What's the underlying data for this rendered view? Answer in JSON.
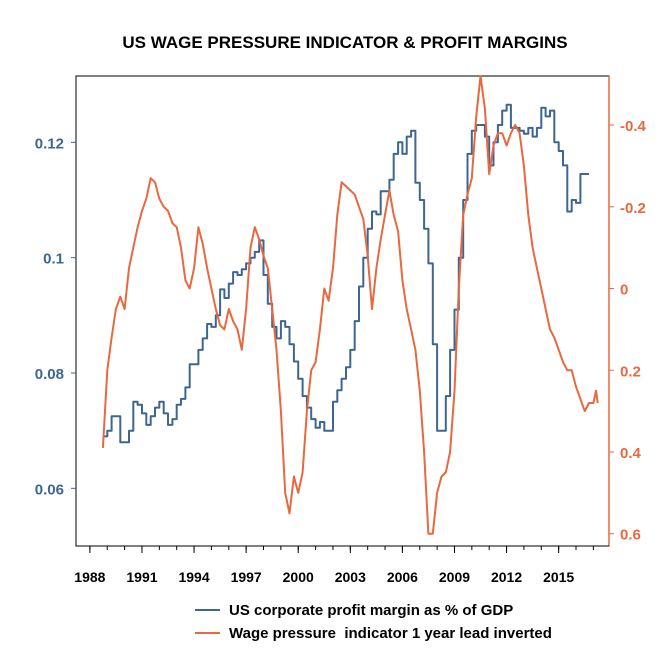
{
  "chart_data": {
    "type": "line",
    "title": "US WAGE PRESSURE INDICATOR & PROFIT MARGINS",
    "x_axis": {
      "range": [
        1987.2,
        2017.9
      ],
      "ticks": [
        1988,
        1991,
        1994,
        1997,
        2000,
        2003,
        2006,
        2009,
        2012,
        2015
      ],
      "tick_labels": [
        "1988",
        "1991",
        "1994",
        "1997",
        "2000",
        "2003",
        "2006",
        "2009",
        "2012",
        "2015"
      ]
    },
    "y_left": {
      "range": [
        0.05,
        0.1315
      ],
      "ticks": [
        0.06,
        0.08,
        0.1,
        0.12
      ],
      "tick_labels": [
        "0.06",
        "0.08",
        "0.1",
        "0.12"
      ],
      "color": "#3d6690"
    },
    "y_right": {
      "range": [
        0.63,
        -0.52
      ],
      "inverted": true,
      "ticks": [
        -0.4,
        -0.2,
        0,
        0.2,
        0.4,
        0.6
      ],
      "tick_labels": [
        "-0.4",
        "-0.2",
        "0",
        "0.2",
        "0.4",
        "0.6"
      ],
      "color": "#e8683f"
    },
    "grid": false,
    "legend_position": "bottom",
    "series": [
      {
        "name": "US corporate profit margin as % of GDP",
        "axis": "left",
        "color": "#3d6690",
        "step": true,
        "points": [
          [
            1988.75,
            0.069
          ],
          [
            1989.0,
            0.07
          ],
          [
            1989.25,
            0.0725
          ],
          [
            1989.75,
            0.068
          ],
          [
            1990.0,
            0.068
          ],
          [
            1990.25,
            0.07
          ],
          [
            1990.5,
            0.075
          ],
          [
            1990.75,
            0.0745
          ],
          [
            1991.0,
            0.073
          ],
          [
            1991.25,
            0.071
          ],
          [
            1991.5,
            0.0725
          ],
          [
            1991.75,
            0.074
          ],
          [
            1992.0,
            0.075
          ],
          [
            1992.25,
            0.073
          ],
          [
            1992.5,
            0.071
          ],
          [
            1992.75,
            0.072
          ],
          [
            1993.0,
            0.0745
          ],
          [
            1993.25,
            0.0755
          ],
          [
            1993.5,
            0.0775
          ],
          [
            1993.75,
            0.0815
          ],
          [
            1994.0,
            0.0815
          ],
          [
            1994.25,
            0.084
          ],
          [
            1994.5,
            0.086
          ],
          [
            1994.75,
            0.0885
          ],
          [
            1995.0,
            0.088
          ],
          [
            1995.25,
            0.09
          ],
          [
            1995.5,
            0.0945
          ],
          [
            1995.75,
            0.093
          ],
          [
            1996.0,
            0.0955
          ],
          [
            1996.25,
            0.0975
          ],
          [
            1996.5,
            0.097
          ],
          [
            1996.75,
            0.098
          ],
          [
            1997.0,
            0.099
          ],
          [
            1997.25,
            0.1
          ],
          [
            1997.5,
            0.101
          ],
          [
            1997.75,
            0.103
          ],
          [
            1998.0,
            0.097
          ],
          [
            1998.25,
            0.092
          ],
          [
            1998.5,
            0.088
          ],
          [
            1998.75,
            0.086
          ],
          [
            1999.0,
            0.089
          ],
          [
            1999.25,
            0.088
          ],
          [
            1999.5,
            0.085
          ],
          [
            1999.75,
            0.082
          ],
          [
            2000.0,
            0.079
          ],
          [
            2000.25,
            0.076
          ],
          [
            2000.5,
            0.074
          ],
          [
            2000.75,
            0.072
          ],
          [
            2001.0,
            0.0705
          ],
          [
            2001.25,
            0.0715
          ],
          [
            2001.5,
            0.07
          ],
          [
            2001.75,
            0.07
          ],
          [
            2002.0,
            0.075
          ],
          [
            2002.25,
            0.077
          ],
          [
            2002.5,
            0.079
          ],
          [
            2002.75,
            0.081
          ],
          [
            2003.0,
            0.084
          ],
          [
            2003.25,
            0.089
          ],
          [
            2003.5,
            0.095
          ],
          [
            2003.75,
            0.1
          ],
          [
            2004.0,
            0.105
          ],
          [
            2004.25,
            0.108
          ],
          [
            2004.5,
            0.1075
          ],
          [
            2004.75,
            0.1115
          ],
          [
            2005.0,
            0.1115
          ],
          [
            2005.25,
            0.1135
          ],
          [
            2005.5,
            0.118
          ],
          [
            2005.75,
            0.12
          ],
          [
            2006.0,
            0.118
          ],
          [
            2006.25,
            0.121
          ],
          [
            2006.5,
            0.122
          ],
          [
            2006.75,
            0.113
          ],
          [
            2007.0,
            0.11
          ],
          [
            2007.25,
            0.105
          ],
          [
            2007.5,
            0.099
          ],
          [
            2007.75,
            0.085
          ],
          [
            2008.0,
            0.07
          ],
          [
            2008.25,
            0.07
          ],
          [
            2008.5,
            0.076
          ],
          [
            2008.75,
            0.084
          ],
          [
            2009.0,
            0.091
          ],
          [
            2009.25,
            0.1
          ],
          [
            2009.5,
            0.11
          ],
          [
            2009.75,
            0.118
          ],
          [
            2010.0,
            0.122
          ],
          [
            2010.25,
            0.123
          ],
          [
            2010.5,
            0.123
          ],
          [
            2010.75,
            0.121
          ],
          [
            2011.0,
            0.116
          ],
          [
            2011.25,
            0.12
          ],
          [
            2011.5,
            0.123
          ],
          [
            2011.75,
            0.1255
          ],
          [
            2012.0,
            0.1265
          ],
          [
            2012.25,
            0.1225
          ],
          [
            2012.5,
            0.1225
          ],
          [
            2012.75,
            0.122
          ],
          [
            2013.0,
            0.1215
          ],
          [
            2013.25,
            0.1225
          ],
          [
            2013.5,
            0.121
          ],
          [
            2013.75,
            0.1225
          ],
          [
            2014.0,
            0.126
          ],
          [
            2014.25,
            0.1245
          ],
          [
            2014.5,
            0.1255
          ],
          [
            2014.75,
            0.12
          ],
          [
            2015.0,
            0.1185
          ],
          [
            2015.25,
            0.116
          ],
          [
            2015.5,
            0.108
          ],
          [
            2015.75,
            0.11
          ],
          [
            2016.0,
            0.1095
          ],
          [
            2016.25,
            0.1145
          ],
          [
            2016.75,
            0.1145
          ]
        ]
      },
      {
        "name": "Wage pressure  indicator 1 year lead inverted",
        "axis": "right",
        "color": "#e8683f",
        "step": false,
        "points": [
          [
            1988.75,
            0.39
          ],
          [
            1989.0,
            0.2
          ],
          [
            1989.25,
            0.12
          ],
          [
            1989.5,
            0.05
          ],
          [
            1989.75,
            0.02
          ],
          [
            1990.0,
            0.05
          ],
          [
            1990.25,
            -0.05
          ],
          [
            1990.5,
            -0.1
          ],
          [
            1990.75,
            -0.15
          ],
          [
            1991.0,
            -0.19
          ],
          [
            1991.25,
            -0.22
          ],
          [
            1991.5,
            -0.27
          ],
          [
            1991.75,
            -0.26
          ],
          [
            1992.0,
            -0.22
          ],
          [
            1992.25,
            -0.2
          ],
          [
            1992.5,
            -0.19
          ],
          [
            1992.75,
            -0.16
          ],
          [
            1993.0,
            -0.15
          ],
          [
            1993.25,
            -0.1
          ],
          [
            1993.5,
            -0.02
          ],
          [
            1993.75,
            0.0
          ],
          [
            1994.0,
            -0.05
          ],
          [
            1994.25,
            -0.15
          ],
          [
            1994.5,
            -0.11
          ],
          [
            1994.75,
            -0.05
          ],
          [
            1995.0,
            0.0
          ],
          [
            1995.25,
            0.05
          ],
          [
            1995.5,
            0.09
          ],
          [
            1995.75,
            0.1
          ],
          [
            1996.0,
            0.05
          ],
          [
            1996.25,
            0.08
          ],
          [
            1996.5,
            0.1
          ],
          [
            1996.75,
            0.15
          ],
          [
            1997.0,
            0.05
          ],
          [
            1997.25,
            -0.1
          ],
          [
            1997.5,
            -0.15
          ],
          [
            1997.75,
            -0.12
          ],
          [
            1998.0,
            -0.08
          ],
          [
            1998.25,
            -0.05
          ],
          [
            1998.5,
            0.05
          ],
          [
            1998.75,
            0.15
          ],
          [
            1999.0,
            0.3
          ],
          [
            1999.25,
            0.5
          ],
          [
            1999.5,
            0.55
          ],
          [
            1999.75,
            0.46
          ],
          [
            2000.0,
            0.5
          ],
          [
            2000.25,
            0.45
          ],
          [
            2000.5,
            0.3
          ],
          [
            2000.75,
            0.2
          ],
          [
            2001.0,
            0.18
          ],
          [
            2001.25,
            0.1
          ],
          [
            2001.5,
            0.0
          ],
          [
            2001.75,
            0.03
          ],
          [
            2002.0,
            -0.05
          ],
          [
            2002.25,
            -0.18
          ],
          [
            2002.5,
            -0.26
          ],
          [
            2002.75,
            -0.25
          ],
          [
            2003.0,
            -0.24
          ],
          [
            2003.25,
            -0.23
          ],
          [
            2003.5,
            -0.2
          ],
          [
            2003.75,
            -0.17
          ],
          [
            2004.0,
            -0.08
          ],
          [
            2004.25,
            0.05
          ],
          [
            2004.5,
            -0.05
          ],
          [
            2004.75,
            -0.12
          ],
          [
            2005.0,
            -0.18
          ],
          [
            2005.25,
            -0.24
          ],
          [
            2005.5,
            -0.18
          ],
          [
            2005.75,
            -0.14
          ],
          [
            2006.0,
            -0.02
          ],
          [
            2006.25,
            0.05
          ],
          [
            2006.5,
            0.1
          ],
          [
            2006.75,
            0.15
          ],
          [
            2007.0,
            0.25
          ],
          [
            2007.25,
            0.4
          ],
          [
            2007.5,
            0.6
          ],
          [
            2007.75,
            0.6
          ],
          [
            2008.0,
            0.5
          ],
          [
            2008.25,
            0.46
          ],
          [
            2008.5,
            0.45
          ],
          [
            2008.75,
            0.4
          ],
          [
            2009.0,
            0.25
          ],
          [
            2009.25,
            0.0
          ],
          [
            2009.5,
            -0.18
          ],
          [
            2009.75,
            -0.23
          ],
          [
            2010.0,
            -0.27
          ],
          [
            2010.25,
            -0.42
          ],
          [
            2010.5,
            -0.52
          ],
          [
            2010.75,
            -0.44
          ],
          [
            2011.0,
            -0.28
          ],
          [
            2011.25,
            -0.35
          ],
          [
            2011.5,
            -0.38
          ],
          [
            2011.75,
            -0.38
          ],
          [
            2012.0,
            -0.35
          ],
          [
            2012.25,
            -0.38
          ],
          [
            2012.5,
            -0.4
          ],
          [
            2012.75,
            -0.38
          ],
          [
            2013.0,
            -0.3
          ],
          [
            2013.25,
            -0.18
          ],
          [
            2013.5,
            -0.1
          ],
          [
            2013.75,
            -0.05
          ],
          [
            2014.0,
            0.0
          ],
          [
            2014.25,
            0.05
          ],
          [
            2014.5,
            0.1
          ],
          [
            2014.75,
            0.12
          ],
          [
            2015.0,
            0.15
          ],
          [
            2015.25,
            0.18
          ],
          [
            2015.5,
            0.2
          ],
          [
            2015.75,
            0.2
          ],
          [
            2016.0,
            0.24
          ],
          [
            2016.25,
            0.27
          ],
          [
            2016.5,
            0.3
          ],
          [
            2016.75,
            0.28
          ],
          [
            2017.0,
            0.28
          ],
          [
            2017.15,
            0.25
          ],
          [
            2017.25,
            0.28
          ]
        ]
      }
    ]
  }
}
